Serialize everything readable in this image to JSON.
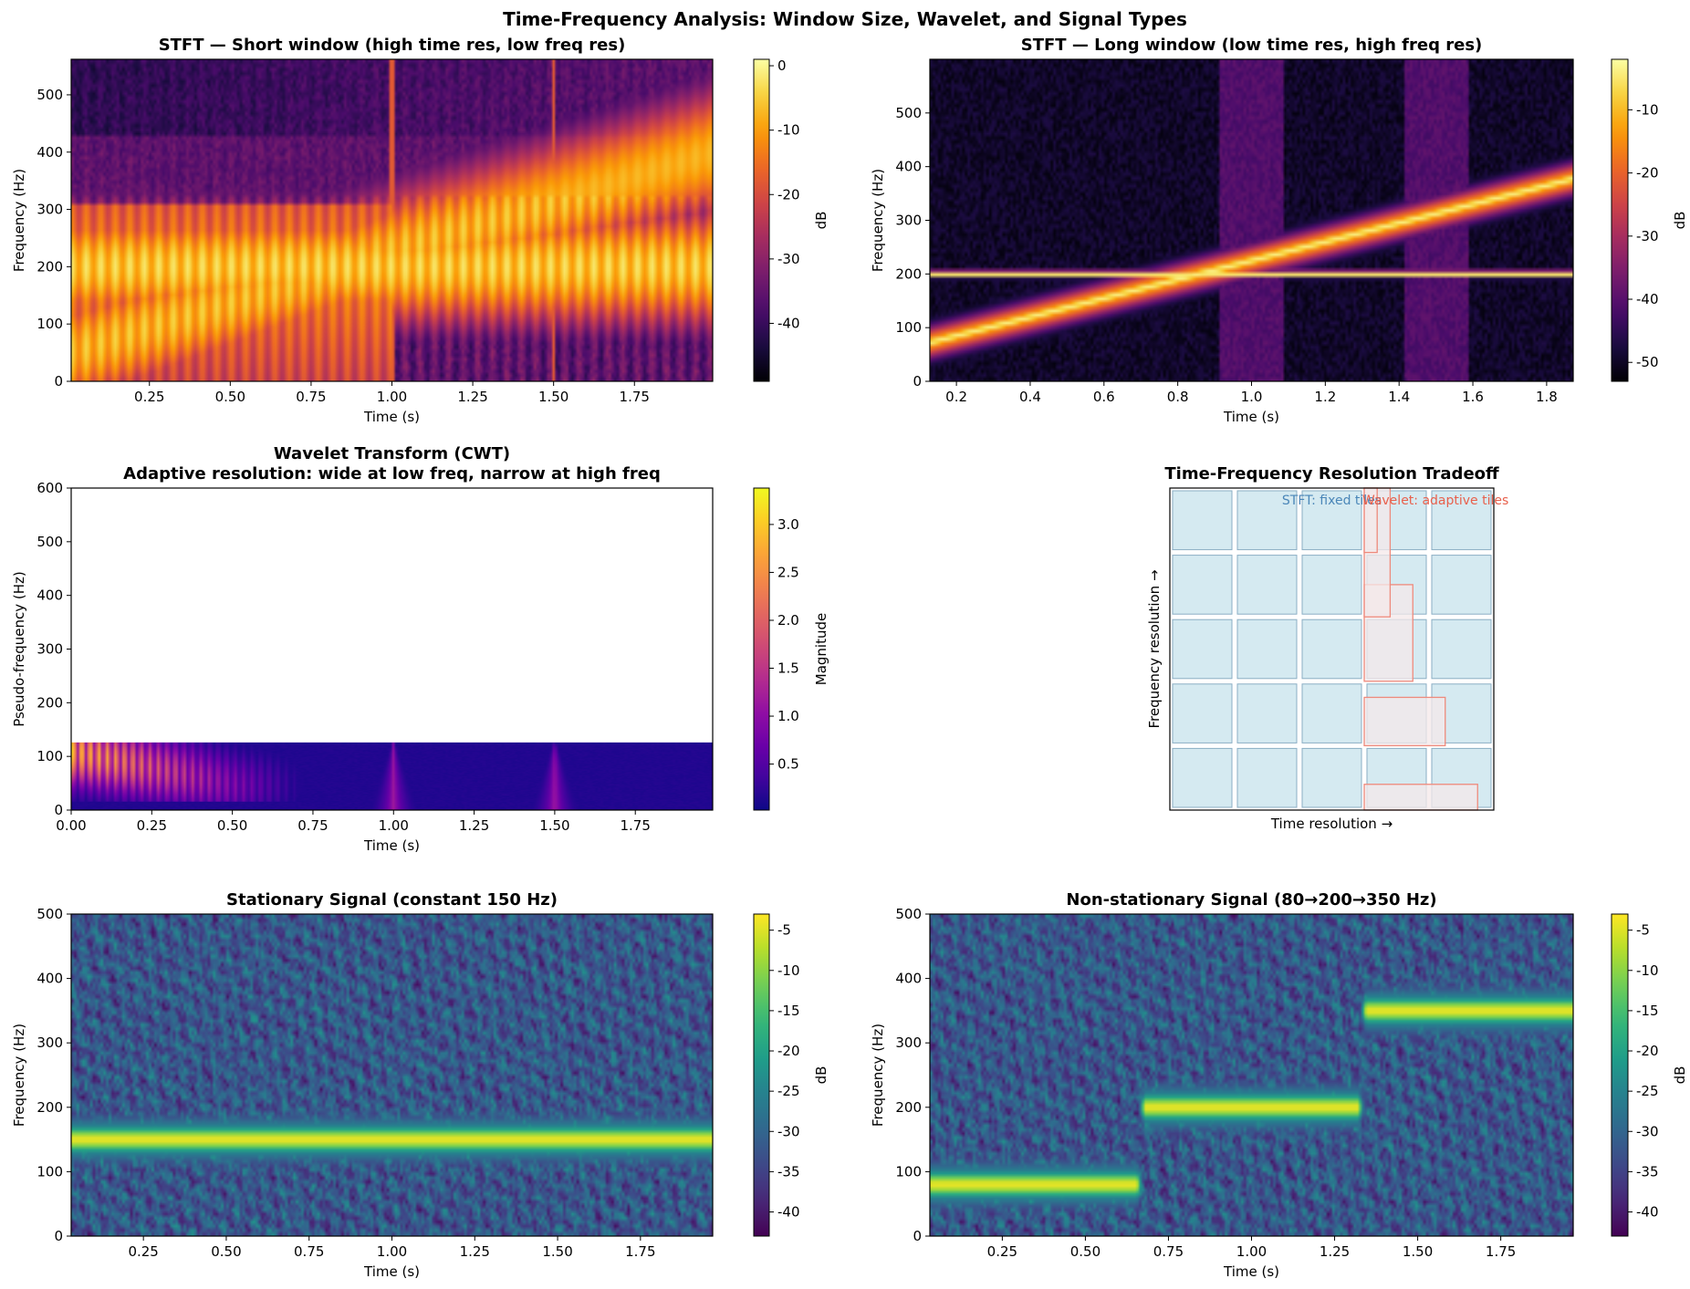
{
  "figure": {
    "suptitle": "Time-Frequency Analysis: Window Size, Wavelet, and Signal Types"
  },
  "chart_data": [
    {
      "id": "stft-short",
      "type": "heatmap",
      "title": "STFT — Short window (high time res, low freq res)",
      "xlabel": "Time (s)",
      "ylabel": "Frequency (Hz)",
      "xlim": [
        0.008,
        1.992
      ],
      "ylim": [
        0,
        562
      ],
      "xticks": [
        0.25,
        0.5,
        0.75,
        1.0,
        1.25,
        1.5,
        1.75
      ],
      "xtick_labels": [
        "0.25",
        "0.50",
        "0.75",
        "1.00",
        "1.25",
        "1.50",
        "1.75"
      ],
      "yticks": [
        0,
        100,
        200,
        300,
        400,
        500
      ],
      "colormap": "inferno",
      "colorbar": {
        "label": "dB",
        "range": [
          -49,
          1
        ],
        "ticks": [
          0,
          -10,
          -20,
          -30,
          -40
        ],
        "tick_labels": [
          "0",
          "-10",
          "-20",
          "-30",
          "-40"
        ]
      },
      "components": [
        {
          "kind": "tone",
          "freq_hz": 200
        },
        {
          "kind": "chirp",
          "freq_start_hz": 50,
          "freq_end_hz": 400
        },
        {
          "kind": "impulse",
          "time_s": 1.0
        },
        {
          "kind": "impulse",
          "time_s": 1.5
        }
      ]
    },
    {
      "id": "stft-long",
      "type": "heatmap",
      "title": "STFT — Long window (low time res, high freq res)",
      "xlabel": "Time (s)",
      "ylabel": "Frequency (Hz)",
      "xlim": [
        0.128,
        1.872
      ],
      "ylim": [
        0,
        600
      ],
      "xticks": [
        0.2,
        0.4,
        0.6,
        0.8,
        1.0,
        1.2,
        1.4,
        1.6,
        1.8
      ],
      "xtick_labels": [
        "0.2",
        "0.4",
        "0.6",
        "0.8",
        "1.0",
        "1.2",
        "1.4",
        "1.6",
        "1.8"
      ],
      "yticks": [
        0,
        100,
        200,
        300,
        400,
        500
      ],
      "colormap": "inferno",
      "colorbar": {
        "label": "dB",
        "range": [
          -53,
          -2
        ],
        "ticks": [
          -10,
          -20,
          -30,
          -40,
          -50
        ],
        "tick_labels": [
          "-10",
          "-20",
          "-30",
          "-40",
          "-50"
        ]
      },
      "components": [
        {
          "kind": "tone",
          "freq_hz": 200
        },
        {
          "kind": "chirp",
          "freq_start_hz": 50,
          "freq_end_hz": 400
        },
        {
          "kind": "impulse",
          "time_s": 1.0
        },
        {
          "kind": "impulse",
          "time_s": 1.5
        }
      ]
    },
    {
      "id": "cwt",
      "type": "heatmap",
      "title": "Wavelet Transform (CWT)\nAdaptive resolution: wide at low freq, narrow at high freq",
      "xlabel": "Time (s)",
      "ylabel": "Pseudo-frequency (Hz)",
      "xlim": [
        0,
        1.99
      ],
      "ylim": [
        0,
        600
      ],
      "data_fmax_hz": 126,
      "xticks": [
        0,
        0.25,
        0.5,
        0.75,
        1.0,
        1.25,
        1.5,
        1.75
      ],
      "xtick_labels": [
        "0.00",
        "0.25",
        "0.50",
        "0.75",
        "1.00",
        "1.25",
        "1.50",
        "1.75"
      ],
      "yticks": [
        0,
        100,
        200,
        300,
        400,
        500,
        600
      ],
      "colormap": "plasma",
      "colorbar": {
        "label": "Magnitude",
        "range": [
          0.02,
          3.38
        ],
        "ticks": [
          0.5,
          1.0,
          1.5,
          2.0,
          2.5,
          3.0
        ],
        "tick_labels": [
          "0.5",
          "1.0",
          "1.5",
          "2.0",
          "2.5",
          "3.0"
        ]
      },
      "components": [
        {
          "kind": "impulse",
          "time_s": 1.0
        },
        {
          "kind": "impulse",
          "time_s": 1.5
        }
      ]
    },
    {
      "id": "tradeoff",
      "type": "diagram",
      "title": "Time-Frequency Resolution Tradeoff",
      "xlabel": "Time resolution →",
      "ylabel": "Frequency resolution →",
      "legend_text": [
        {
          "text": "STFT: fixed tiles",
          "color": "#4a86b8"
        },
        {
          "text": "Wavelet: adaptive tiles",
          "color": "#e8604c"
        }
      ],
      "stft_grid": {
        "rows": 5,
        "cols": 5
      },
      "wavelet_tiles": [
        {
          "t": 0.6,
          "f": 0.0,
          "w": 0.35,
          "h": 0.08
        },
        {
          "t": 0.6,
          "f": 0.2,
          "w": 0.25,
          "h": 0.15
        },
        {
          "t": 0.6,
          "f": 0.4,
          "w": 0.15,
          "h": 0.3
        },
        {
          "t": 0.6,
          "f": 0.6,
          "w": 0.08,
          "h": 0.4
        },
        {
          "t": 0.6,
          "f": 0.8,
          "w": 0.04,
          "h": 0.2
        }
      ],
      "colors": {
        "stft_fill": "#d5eaf1",
        "stft_edge": "#8aaec4",
        "wavelet_fill": "#f4e8ea",
        "wavelet_edge": "#ee8a7c"
      }
    },
    {
      "id": "stationary",
      "type": "heatmap",
      "title": "Stationary Signal (constant 150 Hz)",
      "xlabel": "Time (s)",
      "ylabel": "Frequency (Hz)",
      "xlim": [
        0.032,
        1.968
      ],
      "ylim": [
        0,
        500
      ],
      "xticks": [
        0.25,
        0.5,
        0.75,
        1.0,
        1.25,
        1.5,
        1.75
      ],
      "xtick_labels": [
        "0.25",
        "0.50",
        "0.75",
        "1.00",
        "1.25",
        "1.50",
        "1.75"
      ],
      "yticks": [
        0,
        100,
        200,
        300,
        400,
        500
      ],
      "colormap": "viridis",
      "colorbar": {
        "label": "dB",
        "range": [
          -43,
          -3
        ],
        "ticks": [
          -5,
          -10,
          -15,
          -20,
          -25,
          -30,
          -35,
          -40
        ],
        "tick_labels": [
          "-5",
          "-10",
          "-15",
          "-20",
          "-25",
          "-30",
          "-35",
          "-40"
        ]
      },
      "components": [
        {
          "kind": "tone",
          "freq_hz": 150,
          "t_start_s": 0,
          "t_end_s": 2.0
        }
      ]
    },
    {
      "id": "nonstationary",
      "type": "heatmap",
      "title": "Non-stationary Signal (80→200→350 Hz)",
      "xlabel": "Time (s)",
      "ylabel": "Frequency (Hz)",
      "xlim": [
        0.032,
        1.968
      ],
      "ylim": [
        0,
        500
      ],
      "xticks": [
        0.25,
        0.5,
        0.75,
        1.0,
        1.25,
        1.5,
        1.75
      ],
      "xtick_labels": [
        "0.25",
        "0.50",
        "0.75",
        "1.00",
        "1.25",
        "1.50",
        "1.75"
      ],
      "yticks": [
        0,
        100,
        200,
        300,
        400,
        500
      ],
      "colormap": "viridis",
      "colorbar": {
        "label": "dB",
        "range": [
          -43,
          -3
        ],
        "ticks": [
          -5,
          -10,
          -15,
          -20,
          -25,
          -30,
          -35,
          -40
        ],
        "tick_labels": [
          "-5",
          "-10",
          "-15",
          "-20",
          "-25",
          "-30",
          "-35",
          "-40"
        ]
      },
      "components": [
        {
          "kind": "tone",
          "freq_hz": 80,
          "t_start_s": 0,
          "t_end_s": 0.667
        },
        {
          "kind": "tone",
          "freq_hz": 200,
          "t_start_s": 0.667,
          "t_end_s": 1.333
        },
        {
          "kind": "tone",
          "freq_hz": 350,
          "t_start_s": 1.333,
          "t_end_s": 2.0
        }
      ]
    }
  ]
}
